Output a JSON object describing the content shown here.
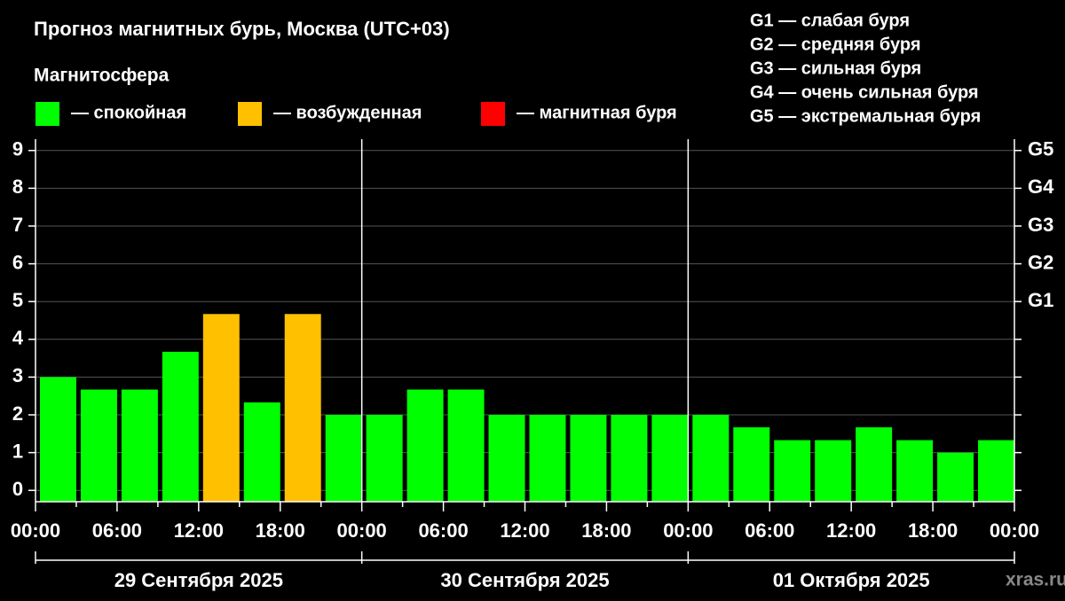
{
  "chart_data": {
    "type": "bar",
    "title": "Прогноз магнитных бурь, Москва (UTC+03)",
    "subtitle": "Магнитосфера",
    "legend": [
      {
        "name": "— спокойная",
        "color": "#00ff00"
      },
      {
        "name": "— возбужденная",
        "color": "#ffc000"
      },
      {
        "name": "— магнитная буря",
        "color": "#ff0000"
      }
    ],
    "storm_levels": [
      "G1 — слабая буря",
      "G2 — средняя буря",
      "G3 — сильная буря",
      "G4 — очень сильная буря",
      "G5 — экстремальная буря"
    ],
    "x": [
      0,
      3,
      6,
      9,
      12,
      15,
      18,
      21,
      24,
      27,
      30,
      33,
      36,
      39,
      42,
      45,
      48,
      51,
      54,
      57,
      60,
      63,
      66,
      69
    ],
    "values": [
      3.0,
      2.67,
      2.67,
      3.67,
      4.67,
      2.33,
      4.67,
      2.0,
      2.0,
      2.67,
      2.67,
      2.0,
      2.0,
      2.0,
      2.0,
      2.0,
      2.0,
      1.67,
      1.33,
      1.33,
      1.67,
      1.33,
      1.0,
      1.33
    ],
    "colors": [
      "#00ff00",
      "#00ff00",
      "#00ff00",
      "#00ff00",
      "#ffc000",
      "#00ff00",
      "#ffc000",
      "#00ff00",
      "#00ff00",
      "#00ff00",
      "#00ff00",
      "#00ff00",
      "#00ff00",
      "#00ff00",
      "#00ff00",
      "#00ff00",
      "#00ff00",
      "#00ff00",
      "#00ff00",
      "#00ff00",
      "#00ff00",
      "#00ff00",
      "#00ff00",
      "#00ff00"
    ],
    "bar_width": 3,
    "xlim": [
      0,
      72
    ],
    "xticks": [
      {
        "value": 0,
        "label": "00:00"
      },
      {
        "value": 6,
        "label": "06:00"
      },
      {
        "value": 12,
        "label": "12:00"
      },
      {
        "value": 18,
        "label": "18:00"
      },
      {
        "value": 24,
        "label": "00:00"
      },
      {
        "value": 30,
        "label": "06:00"
      },
      {
        "value": 36,
        "label": "12:00"
      },
      {
        "value": 42,
        "label": "18:00"
      },
      {
        "value": 48,
        "label": "00:00"
      },
      {
        "value": 54,
        "label": "06:00"
      },
      {
        "value": 60,
        "label": "12:00"
      },
      {
        "value": 66,
        "label": "18:00"
      },
      {
        "value": 72,
        "label": "00:00"
      }
    ],
    "minor_xticks": [
      3,
      9,
      15,
      21,
      27,
      33,
      39,
      45,
      51,
      57,
      63,
      69
    ],
    "day_bounds": [
      0,
      24,
      48,
      72
    ],
    "day_labels": [
      "29 Сентября 2025",
      "30 Сентября 2025",
      "01 Октября 2025"
    ],
    "ylim": [
      -0.3,
      9.3
    ],
    "yticks": [
      0,
      1,
      2,
      3,
      4,
      5,
      6,
      7,
      8,
      9
    ],
    "y2lim": [
      -0.3,
      9.3
    ],
    "y2ticks": [
      {
        "value": 5,
        "label": "G1"
      },
      {
        "value": 6,
        "label": "G2"
      },
      {
        "value": 7,
        "label": "G3"
      },
      {
        "value": 8,
        "label": "G4"
      },
      {
        "value": 9,
        "label": "G5"
      }
    ],
    "grid": true,
    "watermark": "xras.ru"
  }
}
